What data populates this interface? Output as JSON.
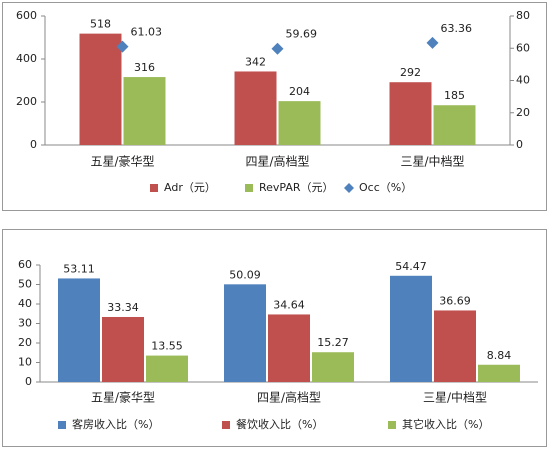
{
  "chart_data": [
    {
      "type": "bar",
      "categories": [
        "五星/豪华型",
        "四星/高档型",
        "三星/中档型"
      ],
      "series": [
        {
          "name": "Adr（元）",
          "color": "#c0504d",
          "values": [
            518,
            342,
            292
          ]
        },
        {
          "name": "RevPAR（元）",
          "color": "#9bbb59",
          "values": [
            316,
            204,
            185
          ]
        },
        {
          "name": "Occ（%）",
          "color": "#4f81bd",
          "type": "scatter",
          "axis": "y2",
          "values": [
            61.03,
            59.69,
            63.36
          ]
        }
      ],
      "ylim": [
        0,
        600
      ],
      "yticks": [
        0,
        200,
        400,
        600
      ],
      "y2lim": [
        0,
        80
      ],
      "y2ticks": [
        0,
        20,
        40,
        60,
        80
      ],
      "grid": false,
      "legend": "bottom"
    },
    {
      "type": "bar",
      "categories": [
        "五星/豪华型",
        "四星/高档型",
        "三星/中档型"
      ],
      "series": [
        {
          "name": "客房收入比（%）",
          "color": "#4f81bd",
          "values": [
            53.11,
            50.09,
            54.47
          ]
        },
        {
          "name": "餐饮收入比（%）",
          "color": "#c0504d",
          "values": [
            33.34,
            34.64,
            36.69
          ]
        },
        {
          "name": "其它收入比（%）",
          "color": "#9bbb59",
          "values": [
            13.55,
            15.27,
            8.84
          ]
        }
      ],
      "ylim": [
        0,
        60
      ],
      "yticks": [
        0,
        10,
        20,
        30,
        40,
        50,
        60
      ],
      "grid": false,
      "legend": "bottom"
    }
  ]
}
